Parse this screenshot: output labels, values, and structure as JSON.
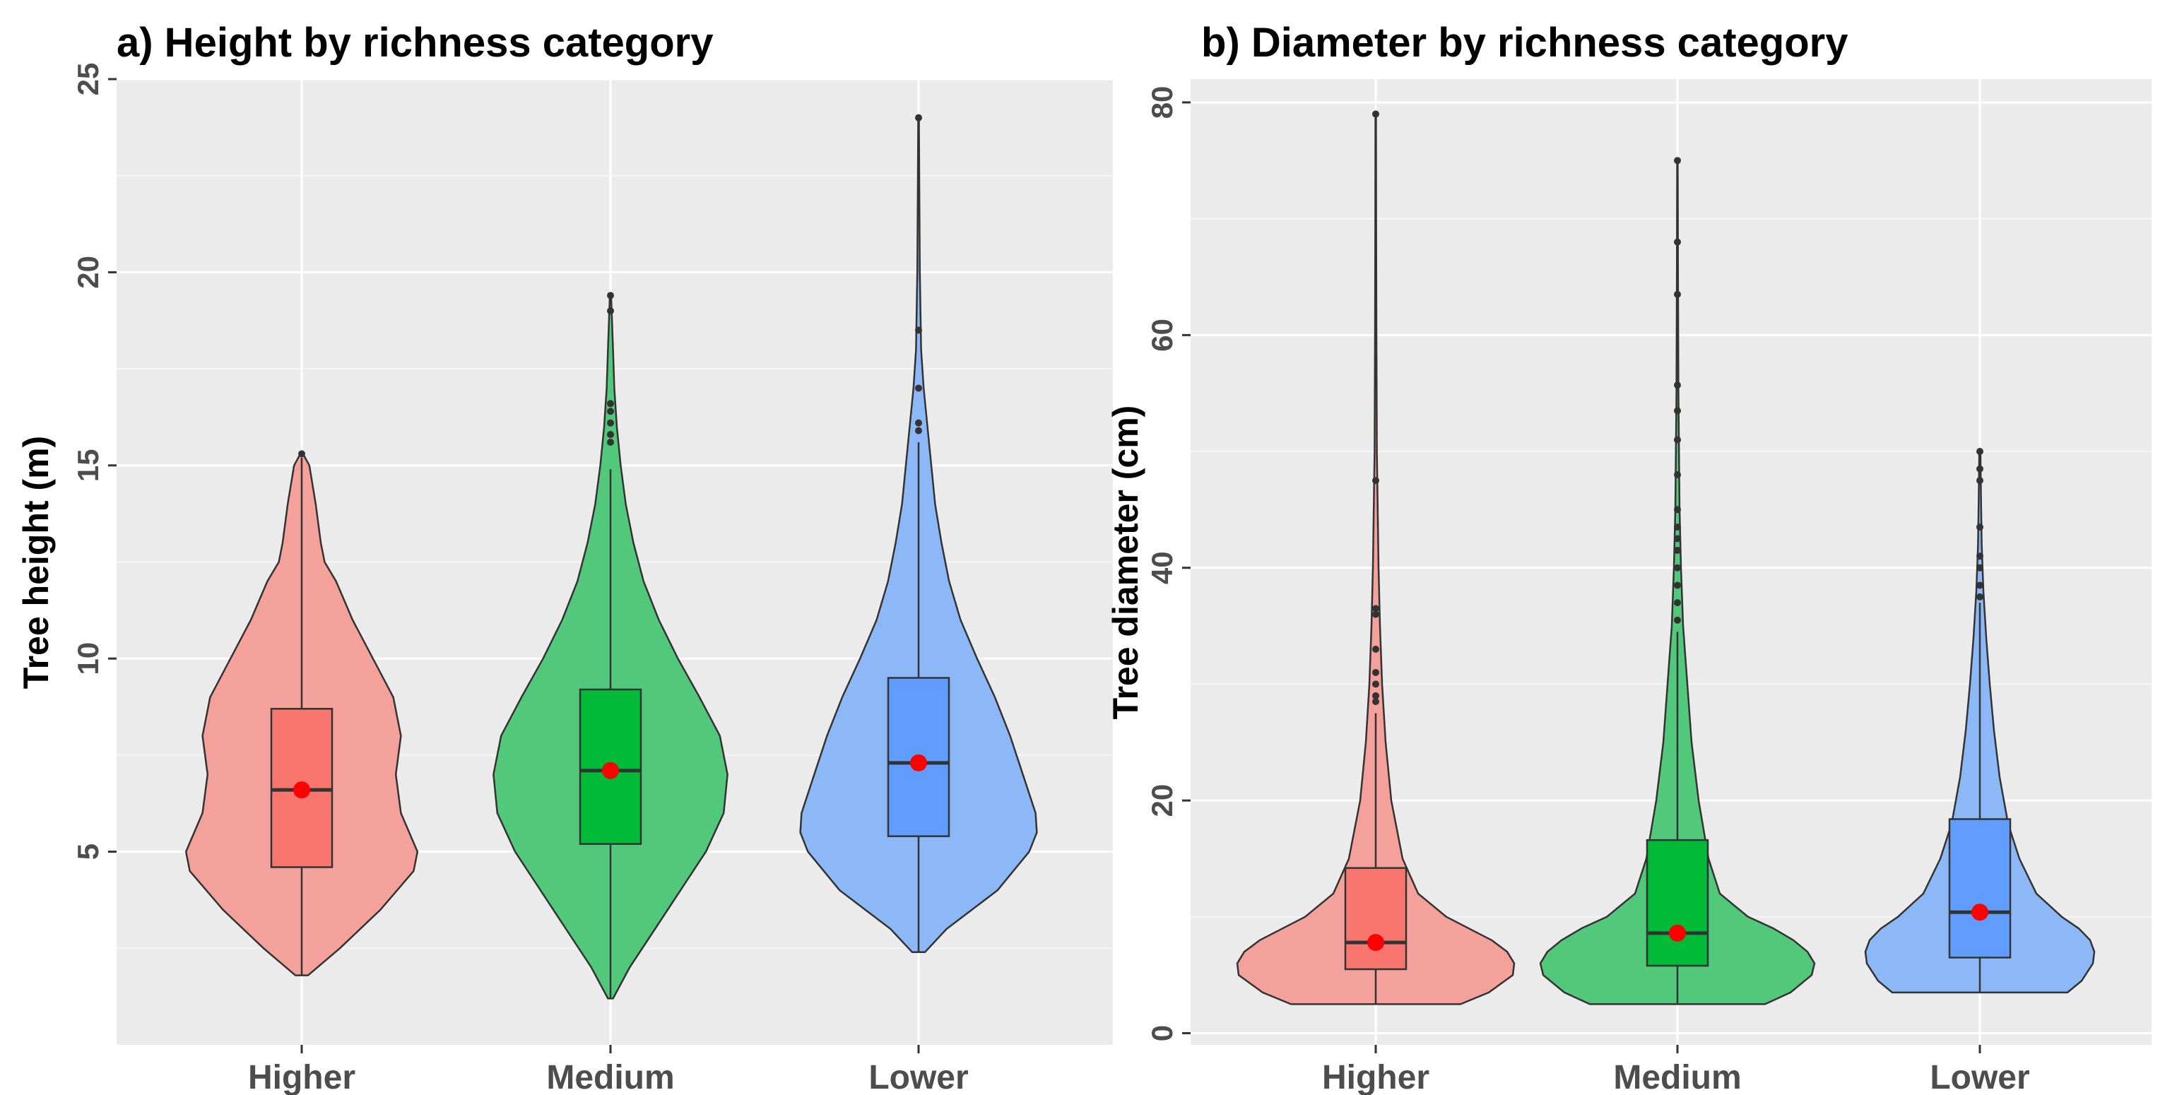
{
  "chart_data": [
    {
      "type": "violin",
      "title": "a) Height by richness category",
      "xlabel": "",
      "ylabel": "Tree height (m)",
      "ylim": [
        0,
        25
      ],
      "yticks": [
        5,
        10,
        15,
        20,
        25
      ],
      "grid": true,
      "categories": [
        "Higher",
        "Medium",
        "Lower"
      ],
      "colors": {
        "violin": [
          "#F4A09B",
          "#52C97A",
          "#8DB8F8"
        ],
        "box": [
          "#F8766D",
          "#00BA38",
          "#619CFF"
        ]
      },
      "series": [
        {
          "name": "Higher",
          "profile": [
            [
              1.8,
              0.05
            ],
            [
              2.5,
              0.3
            ],
            [
              3.5,
              0.62
            ],
            [
              4.5,
              0.88
            ],
            [
              5.0,
              0.91
            ],
            [
              6.0,
              0.78
            ],
            [
              7.0,
              0.74
            ],
            [
              8.0,
              0.78
            ],
            [
              9.0,
              0.72
            ],
            [
              10.0,
              0.56
            ],
            [
              11.0,
              0.4
            ],
            [
              12.0,
              0.27
            ],
            [
              12.5,
              0.18
            ],
            [
              13.0,
              0.15
            ],
            [
              14.0,
              0.11
            ],
            [
              15.0,
              0.06
            ],
            [
              15.3,
              0.01
            ]
          ],
          "box": {
            "q1": 4.6,
            "median": 6.6,
            "q3": 8.7,
            "whisker_low": 1.8,
            "whisker_high": 15.2
          },
          "mean": 6.6,
          "outliers": [
            15.3
          ]
        },
        {
          "name": "Medium",
          "profile": [
            [
              1.2,
              0.02
            ],
            [
              2.0,
              0.15
            ],
            [
              3.0,
              0.35
            ],
            [
              4.0,
              0.55
            ],
            [
              5.0,
              0.75
            ],
            [
              6.0,
              0.89
            ],
            [
              7.0,
              0.92
            ],
            [
              8.0,
              0.86
            ],
            [
              9.0,
              0.7
            ],
            [
              10.0,
              0.53
            ],
            [
              11.0,
              0.38
            ],
            [
              12.0,
              0.26
            ],
            [
              13.0,
              0.18
            ],
            [
              14.0,
              0.12
            ],
            [
              15.0,
              0.08
            ],
            [
              16.0,
              0.05
            ],
            [
              17.0,
              0.03
            ],
            [
              18.0,
              0.02
            ],
            [
              19.4,
              0.005
            ]
          ],
          "box": {
            "q1": 5.2,
            "median": 7.1,
            "q3": 9.2,
            "whisker_low": 1.2,
            "whisker_high": 14.9
          },
          "mean": 7.1,
          "outliers": [
            15.6,
            15.8,
            16.1,
            16.4,
            16.6,
            19.0,
            19.4
          ]
        },
        {
          "name": "Lower",
          "profile": [
            [
              2.4,
              0.05
            ],
            [
              3.0,
              0.22
            ],
            [
              4.0,
              0.62
            ],
            [
              5.0,
              0.87
            ],
            [
              5.5,
              0.93
            ],
            [
              6.0,
              0.92
            ],
            [
              7.0,
              0.82
            ],
            [
              8.0,
              0.72
            ],
            [
              9.0,
              0.6
            ],
            [
              10.0,
              0.46
            ],
            [
              11.0,
              0.33
            ],
            [
              12.0,
              0.24
            ],
            [
              13.0,
              0.18
            ],
            [
              14.0,
              0.13
            ],
            [
              15.0,
              0.1
            ],
            [
              16.0,
              0.07
            ],
            [
              17.0,
              0.04
            ],
            [
              18.0,
              0.02
            ],
            [
              20.0,
              0.01
            ],
            [
              22.0,
              0.006
            ],
            [
              24.0,
              0.003
            ]
          ],
          "box": {
            "q1": 5.4,
            "median": 7.3,
            "q3": 9.5,
            "whisker_low": 2.4,
            "whisker_high": 15.6
          },
          "mean": 7.3,
          "outliers": [
            15.9,
            16.1,
            17.0,
            18.5,
            24.0
          ]
        }
      ]
    },
    {
      "type": "violin",
      "title": "b) Diameter by richness category",
      "xlabel": "",
      "ylabel": "Tree diameter (cm)",
      "ylim": [
        -1,
        82
      ],
      "yticks": [
        0,
        20,
        40,
        60,
        80
      ],
      "grid": true,
      "categories": [
        "Higher",
        "Medium",
        "Lower"
      ],
      "colors": {
        "violin": [
          "#F4A09B",
          "#52C97A",
          "#8DB8F8"
        ],
        "box": [
          "#F8766D",
          "#00BA38",
          "#619CFF"
        ]
      },
      "series": [
        {
          "name": "Higher",
          "profile": [
            [
              2.5,
              0.6
            ],
            [
              3.5,
              0.8
            ],
            [
              5.0,
              0.97
            ],
            [
              6.0,
              0.98
            ],
            [
              7.0,
              0.93
            ],
            [
              8.0,
              0.82
            ],
            [
              9.0,
              0.66
            ],
            [
              10.0,
              0.5
            ],
            [
              12.0,
              0.3
            ],
            [
              15.0,
              0.19
            ],
            [
              20.0,
              0.11
            ],
            [
              25.0,
              0.07
            ],
            [
              30.0,
              0.045
            ],
            [
              35.0,
              0.03
            ],
            [
              40.0,
              0.02
            ],
            [
              50.0,
              0.008
            ],
            [
              60.0,
              0.005
            ],
            [
              70.0,
              0.003
            ],
            [
              79.0,
              0.002
            ]
          ],
          "box": {
            "q1": 5.5,
            "median": 7.8,
            "q3": 14.2,
            "whisker_low": 2.5,
            "whisker_high": 27.5
          },
          "mean": 7.8,
          "outliers": [
            28.5,
            29.0,
            30.0,
            31.0,
            33.0,
            36.0,
            36.5,
            47.5,
            79.0
          ]
        },
        {
          "name": "Medium",
          "profile": [
            [
              2.5,
              0.62
            ],
            [
              3.5,
              0.8
            ],
            [
              5.0,
              0.95
            ],
            [
              6.0,
              0.97
            ],
            [
              7.0,
              0.92
            ],
            [
              8.0,
              0.82
            ],
            [
              9.0,
              0.68
            ],
            [
              10.0,
              0.5
            ],
            [
              12.0,
              0.3
            ],
            [
              15.0,
              0.22
            ],
            [
              20.0,
              0.15
            ],
            [
              25.0,
              0.1
            ],
            [
              30.0,
              0.07
            ],
            [
              35.0,
              0.04
            ],
            [
              40.0,
              0.025
            ],
            [
              45.0,
              0.015
            ],
            [
              55.0,
              0.007
            ],
            [
              65.0,
              0.004
            ],
            [
              75.0,
              0.002
            ]
          ],
          "box": {
            "q1": 5.8,
            "median": 8.6,
            "q3": 16.6,
            "whisker_low": 2.5,
            "whisker_high": 34.5
          },
          "mean": 8.6,
          "outliers": [
            35.5,
            37.0,
            38.5,
            40.0,
            41.5,
            42.5,
            43.5,
            45.0,
            48.0,
            51.0,
            53.5,
            55.7,
            63.5,
            68.0,
            75.0
          ]
        },
        {
          "name": "Lower",
          "profile": [
            [
              3.5,
              0.62
            ],
            [
              4.5,
              0.72
            ],
            [
              6.0,
              0.8
            ],
            [
              7.0,
              0.81
            ],
            [
              8.0,
              0.78
            ],
            [
              9.0,
              0.7
            ],
            [
              10.0,
              0.58
            ],
            [
              12.0,
              0.4
            ],
            [
              15.0,
              0.28
            ],
            [
              18.0,
              0.2
            ],
            [
              22.0,
              0.14
            ],
            [
              26.0,
              0.1
            ],
            [
              30.0,
              0.07
            ],
            [
              34.0,
              0.045
            ],
            [
              38.0,
              0.025
            ],
            [
              42.0,
              0.013
            ],
            [
              46.0,
              0.008
            ],
            [
              50.0,
              0.004
            ]
          ],
          "box": {
            "q1": 6.5,
            "median": 10.4,
            "q3": 18.4,
            "whisker_low": 3.5,
            "whisker_high": 37.0
          },
          "mean": 10.4,
          "outliers": [
            37.5,
            38.5,
            40.0,
            41.0,
            43.5,
            47.5,
            48.5,
            50.0
          ]
        }
      ]
    }
  ]
}
